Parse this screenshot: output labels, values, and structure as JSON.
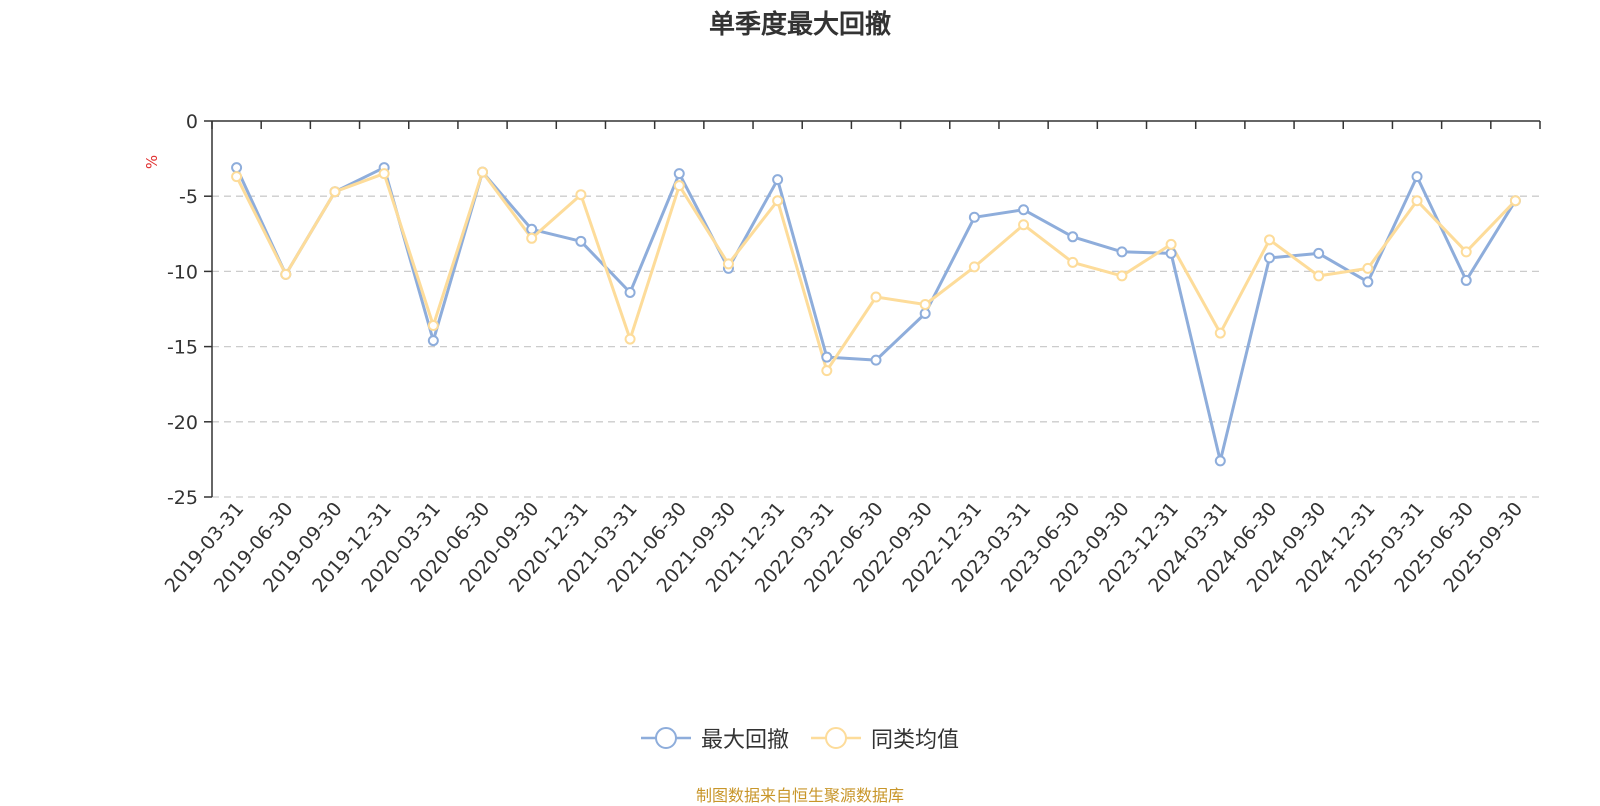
{
  "chart_data": {
    "type": "line",
    "title": "单季度最大回撤",
    "ylabel": "%",
    "ylim": [
      -25,
      0
    ],
    "yticks": [
      0,
      -5,
      -10,
      -15,
      -20,
      -25
    ],
    "grid": true,
    "legend_position": "bottom",
    "categories": [
      "2019-03-31",
      "2019-06-30",
      "2019-09-30",
      "2019-12-31",
      "2020-03-31",
      "2020-06-30",
      "2020-09-30",
      "2020-12-31",
      "2021-03-31",
      "2021-06-30",
      "2021-09-30",
      "2021-12-31",
      "2022-03-31",
      "2022-06-30",
      "2022-09-30",
      "2022-12-31",
      "2023-03-31",
      "2023-06-30",
      "2023-09-30",
      "2023-12-31",
      "2024-03-31",
      "2024-06-30",
      "2024-09-30",
      "2024-12-31",
      "2025-03-31",
      "2025-06-30",
      "2025-09-30"
    ],
    "series": [
      {
        "name": "最大回撤",
        "color": "#8eaddb",
        "values": [
          -3.1,
          -10.2,
          -4.7,
          -3.1,
          -14.6,
          -3.4,
          -7.2,
          -8.0,
          -11.4,
          -3.5,
          -9.8,
          -3.9,
          -15.7,
          -15.9,
          -12.8,
          -6.4,
          -5.9,
          -7.7,
          -8.7,
          -8.8,
          -22.6,
          -9.1,
          -8.8,
          -10.7,
          -3.7,
          -10.6,
          -5.3
        ]
      },
      {
        "name": "同类均值",
        "color": "#fddc9a",
        "values": [
          -3.7,
          -10.2,
          -4.7,
          -3.5,
          -13.6,
          -3.4,
          -7.8,
          -4.9,
          -14.5,
          -4.3,
          -9.5,
          -5.3,
          -16.6,
          -11.7,
          -12.2,
          -9.7,
          -6.9,
          -9.4,
          -10.3,
          -8.2,
          -14.1,
          -7.9,
          -10.3,
          -9.8,
          -5.3,
          -8.7,
          -5.3
        ]
      }
    ]
  },
  "source_note": "制图数据来自恒生聚源数据库"
}
